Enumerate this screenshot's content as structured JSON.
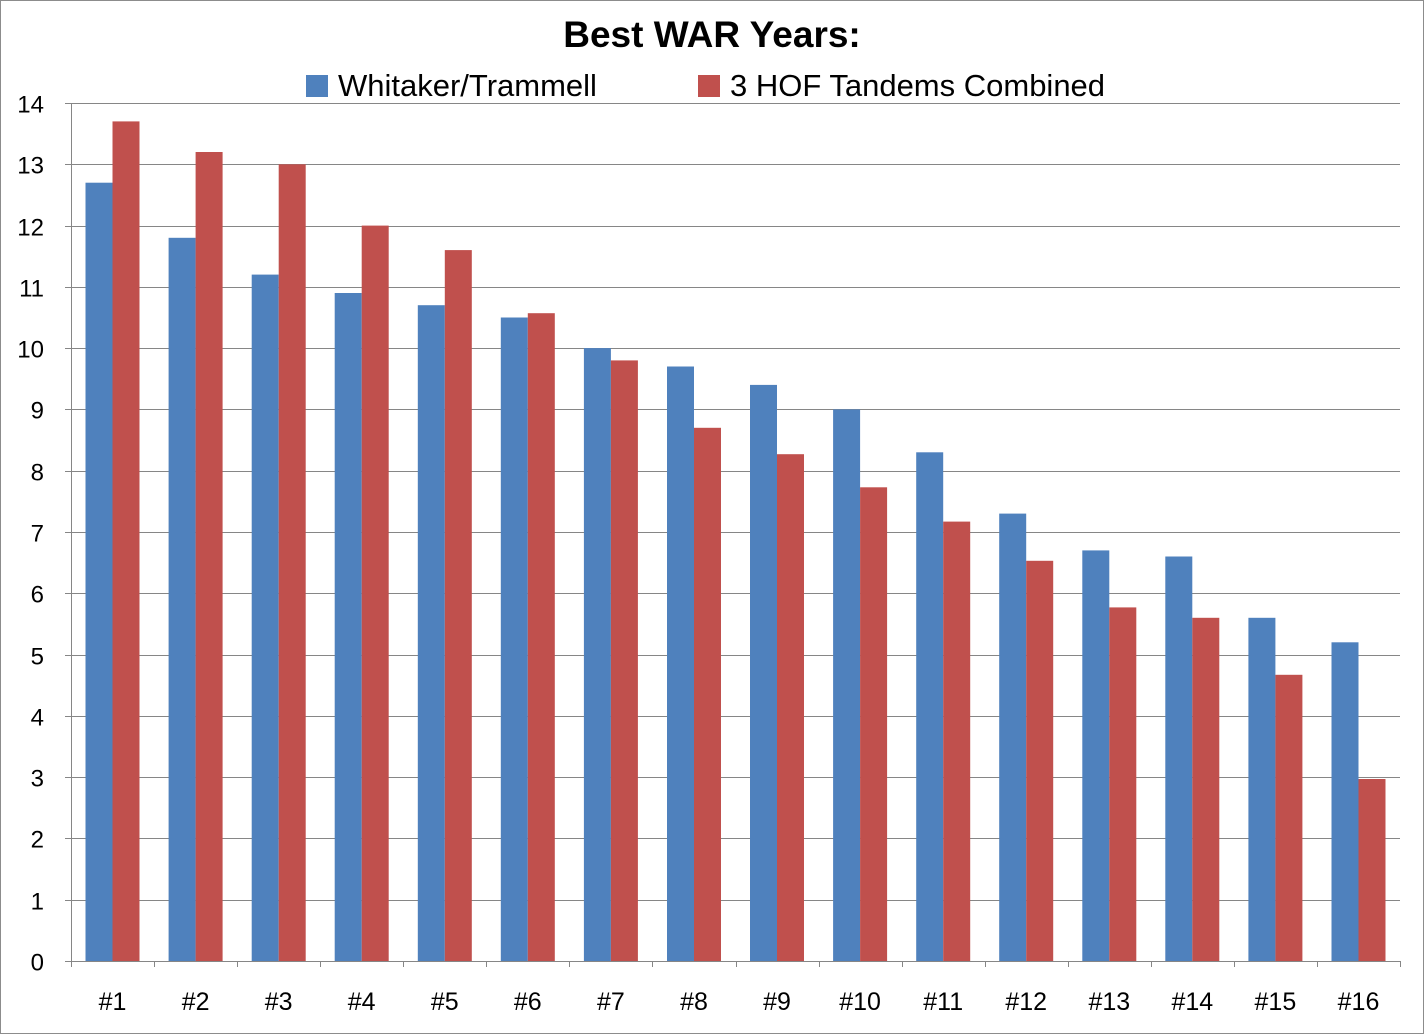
{
  "chart_data": {
    "type": "bar",
    "title": "Best WAR Years:",
    "xlabel": "",
    "ylabel": "",
    "categories": [
      "#1",
      "#2",
      "#3",
      "#4",
      "#5",
      "#6",
      "#7",
      "#8",
      "#9",
      "#10",
      "#11",
      "#12",
      "#13",
      "#14",
      "#15",
      "#16"
    ],
    "series": [
      {
        "name": "Whitaker/Trammell",
        "color": "#4f81bd",
        "values": [
          12.7,
          11.8,
          11.2,
          10.9,
          10.7,
          10.5,
          10.0,
          9.7,
          9.4,
          9.0,
          8.3,
          7.3,
          6.7,
          6.6,
          5.6,
          5.2
        ]
      },
      {
        "name": "3 HOF Tandems Combined",
        "color": "#c0504d",
        "values": [
          13.7,
          13.2,
          13.0,
          12.0,
          11.6,
          10.57,
          9.8,
          8.7,
          8.27,
          7.73,
          7.17,
          6.53,
          5.77,
          5.6,
          4.67,
          2.97
        ]
      }
    ],
    "ylim": [
      0,
      14
    ],
    "yticks": [
      0,
      1,
      2,
      3,
      4,
      5,
      6,
      7,
      8,
      9,
      10,
      11,
      12,
      13,
      14
    ],
    "grid": true,
    "legend_position": "top"
  }
}
